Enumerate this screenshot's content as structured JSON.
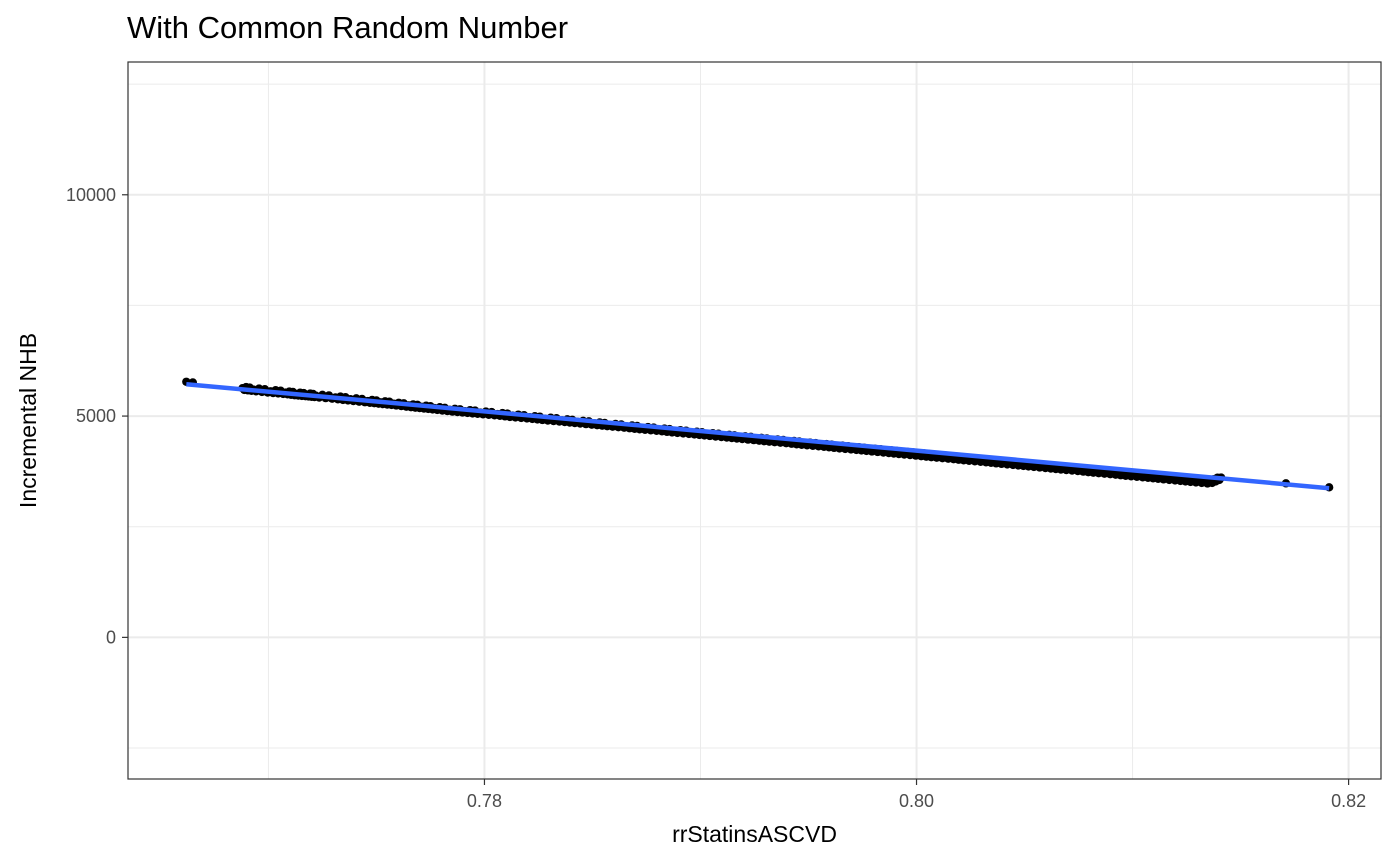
{
  "chart_data": {
    "type": "scatter",
    "title": "With Common Random Number",
    "xlabel": "rrStatinsASCVD",
    "ylabel": "Incremental NHB",
    "xlim": [
      0.7635,
      0.8215
    ],
    "ylim": [
      -3200,
      13000
    ],
    "x_ticks": [
      0.78,
      0.8,
      0.82
    ],
    "x_tick_labels": [
      "0.78",
      "0.80",
      "0.82"
    ],
    "y_ticks": [
      0,
      5000,
      10000
    ],
    "y_tick_labels": [
      "0",
      "5000",
      "10000"
    ],
    "grid": true,
    "legend": "none",
    "colors": {
      "points": "#000000",
      "fit_line": "#3366FF",
      "grid": "#EBEBEB",
      "panel_border": "#333333"
    },
    "points": {
      "x": [
        0.7662,
        0.7665,
        0.7688,
        0.7693,
        0.7701,
        0.7708,
        0.7713,
        0.7718,
        0.7722,
        0.7731,
        0.7738,
        0.7746,
        0.7752,
        0.7758,
        0.7765,
        0.7771,
        0.7777,
        0.7784,
        0.7791,
        0.7798,
        0.7806,
        0.7813,
        0.7821,
        0.7828,
        0.7836,
        0.7843,
        0.7851,
        0.7858,
        0.7866,
        0.7873,
        0.7881,
        0.7888,
        0.7896,
        0.7903,
        0.7911,
        0.7918,
        0.7926,
        0.7933,
        0.7941,
        0.7948,
        0.7956,
        0.7963,
        0.7971,
        0.7978,
        0.7986,
        0.7993,
        0.8001,
        0.8008,
        0.8016,
        0.8023,
        0.8031,
        0.8038,
        0.8046,
        0.8053,
        0.8061,
        0.8068,
        0.8076,
        0.8083,
        0.8091,
        0.8098,
        0.8106,
        0.8113,
        0.8121,
        0.8128,
        0.8136,
        0.8141,
        0.8171,
        0.8191
      ],
      "y": [
        5775,
        5760,
        5630,
        5600,
        5560,
        5530,
        5500,
        5480,
        5460,
        5420,
        5380,
        5340,
        5310,
        5280,
        5240,
        5210,
        5180,
        5140,
        5110,
        5080,
        5045,
        5010,
        4975,
        4940,
        4905,
        4870,
        4835,
        4800,
        4765,
        4730,
        4695,
        4660,
        4625,
        4590,
        4555,
        4520,
        4485,
        4450,
        4415,
        4380,
        4345,
        4310,
        4275,
        4240,
        4205,
        4170,
        4135,
        4100,
        4065,
        4030,
        3995,
        3960,
        3925,
        3890,
        3855,
        3820,
        3785,
        3750,
        3715,
        3680,
        3645,
        3610,
        3575,
        3540,
        3505,
        3610,
        3480,
        3390
      ]
    },
    "fit_line": {
      "x": [
        0.7662,
        0.8191
      ],
      "y": [
        5720,
        3370
      ]
    }
  }
}
